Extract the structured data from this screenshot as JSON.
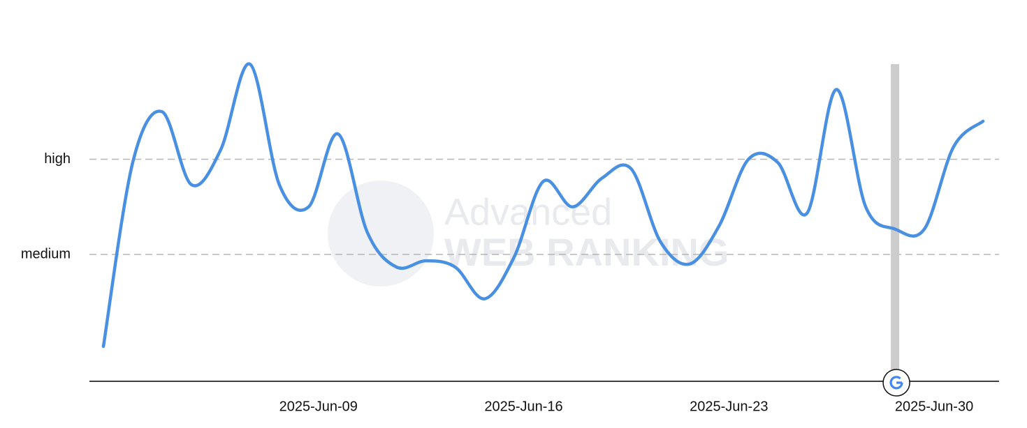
{
  "chart_data": {
    "type": "line",
    "x": [
      "2025-06-02",
      "2025-06-03",
      "2025-06-04",
      "2025-06-05",
      "2025-06-06",
      "2025-06-07",
      "2025-06-08",
      "2025-06-09",
      "2025-06-10",
      "2025-06-11",
      "2025-06-12",
      "2025-06-13",
      "2025-06-14",
      "2025-06-15",
      "2025-06-16",
      "2025-06-17",
      "2025-06-18",
      "2025-06-19",
      "2025-06-20",
      "2025-06-21",
      "2025-06-22",
      "2025-06-23",
      "2025-06-24",
      "2025-06-25",
      "2025-06-26",
      "2025-06-27",
      "2025-06-28",
      "2025-06-29",
      "2025-06-30",
      "2025-07-01",
      "2025-07-02"
    ],
    "series": [
      {
        "color": "#4a90e2",
        "values": [
          2.1,
          7.9,
          9.5,
          7.2,
          8.3,
          11.0,
          7.2,
          6.5,
          8.8,
          5.7,
          4.6,
          4.8,
          4.6,
          3.6,
          4.9,
          7.3,
          6.5,
          7.4,
          7.7,
          5.4,
          4.7,
          5.9,
          8.0,
          7.9,
          6.3,
          10.2,
          6.5,
          5.8,
          5.8,
          8.4,
          9.2
        ]
      }
    ],
    "xlim": [
      "2025-06-02",
      "2025-07-02"
    ],
    "xticks": [
      {
        "value": "2025-06-09",
        "label": "2025-Jun-09"
      },
      {
        "value": "2025-06-16",
        "label": "2025-Jun-16"
      },
      {
        "value": "2025-06-23",
        "label": "2025-Jun-23"
      },
      {
        "value": "2025-06-30",
        "label": "2025-Jun-30"
      }
    ],
    "ylim": [
      1,
      11
    ],
    "yticks": [
      {
        "value": 5,
        "label": "medium"
      },
      {
        "value": 8,
        "label": "high"
      }
    ],
    "grid": true,
    "event_date": "2025-06-29",
    "watermark": [
      "Advanced",
      "WEB RANKING"
    ]
  }
}
